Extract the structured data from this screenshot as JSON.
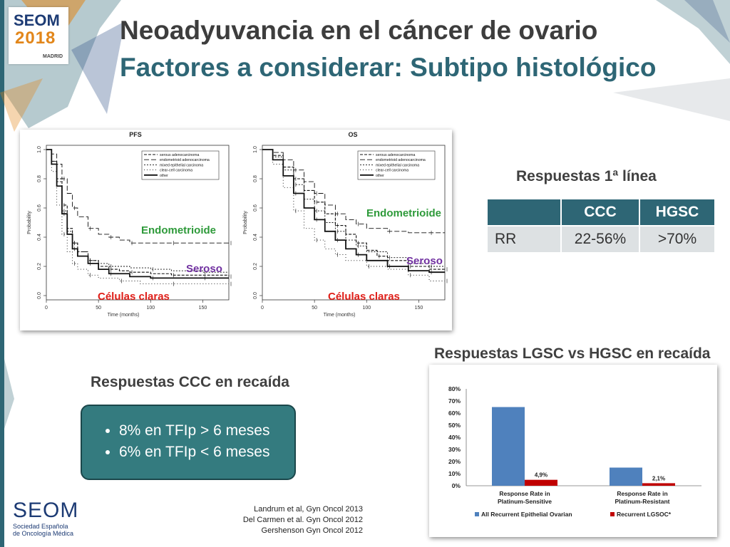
{
  "logo": {
    "line1": "SEOM",
    "line2": "2018",
    "city": "MADRID"
  },
  "title": {
    "line1": "Neoadyuvancia en el cáncer de ovario",
    "line2": "Factores a considerar: Subtipo histológico"
  },
  "km_plots": [
    {
      "panel_title": "PFS",
      "ylabel": "Probability",
      "xlabel": "Time (months)",
      "xticks": [
        "0",
        "50",
        "100",
        "150"
      ],
      "yticks": [
        "0.0",
        "0.2",
        "0.4",
        "0.6",
        "0.8",
        "1.0"
      ],
      "legend": [
        "serous adenocarcinoma",
        "endometrioid adenocarcinoma",
        "mixed epithelial carcinoma",
        "clear-cell carcinoma",
        "other"
      ],
      "annotations": {
        "endometrioid": "Endometrioide",
        "serous": "Seroso",
        "clear_cell": "Células claras"
      }
    },
    {
      "panel_title": "OS",
      "ylabel": "Probability",
      "xlabel": "Time (months)",
      "xticks": [
        "0",
        "50",
        "100",
        "150"
      ],
      "yticks": [
        "0.0",
        "0.2",
        "0.4",
        "0.6",
        "0.8",
        "1.0"
      ],
      "legend": [
        "serous adenocarcinoma",
        "endometrioid adenocarcinoma",
        "mixed epithelial carcinoma",
        "clear-cell carcinoma",
        "other"
      ],
      "annotations": {
        "endometrioid": "Endometrioide",
        "serous": "Seroso",
        "clear_cell": "Células claras"
      }
    }
  ],
  "first_line": {
    "heading": "Respuestas 1ª línea",
    "headers": [
      "",
      "CCC",
      "HGSC"
    ],
    "row": [
      "RR",
      "22-56%",
      ">70%"
    ]
  },
  "ccc_relapse": {
    "heading": "Respuestas CCC en recaída",
    "bullets": [
      "8% en TFIp > 6 meses",
      "6% en TFIp < 6 meses"
    ]
  },
  "lgsc": {
    "heading": "Respuestas LGSC vs HGSC en recaída"
  },
  "references": [
    "Landrum et al, Gyn Oncol 2013",
    "Del Carmen et al. Gyn Oncol 2012",
    "Gershenson Gyn Oncol 2012"
  ],
  "seom_footer": {
    "name": "SEOM",
    "line1": "Sociedad Española",
    "line2": "de Oncología Médica"
  },
  "chart_data": [
    {
      "type": "line",
      "title": "PFS",
      "xlabel": "Time (months)",
      "ylabel": "Probability",
      "xlim": [
        0,
        175
      ],
      "ylim": [
        0,
        1
      ],
      "series": [
        {
          "name": "serous adenocarcinoma",
          "x": [
            0,
            5,
            10,
            15,
            20,
            25,
            30,
            40,
            50,
            60,
            70,
            80,
            100,
            120,
            150,
            175
          ],
          "y": [
            1.0,
            0.92,
            0.8,
            0.62,
            0.46,
            0.36,
            0.3,
            0.24,
            0.2,
            0.18,
            0.17,
            0.16,
            0.15,
            0.14,
            0.14,
            0.13
          ]
        },
        {
          "name": "endometrioid adenocarcinoma",
          "x": [
            0,
            5,
            10,
            15,
            20,
            25,
            30,
            40,
            50,
            60,
            70,
            80,
            100,
            120,
            150,
            175
          ],
          "y": [
            1.0,
            0.97,
            0.9,
            0.8,
            0.7,
            0.6,
            0.54,
            0.46,
            0.42,
            0.4,
            0.38,
            0.36,
            0.36,
            0.36,
            0.36,
            0.36
          ]
        },
        {
          "name": "mixed epithelial carcinoma",
          "x": [
            0,
            5,
            10,
            15,
            20,
            25,
            30,
            40,
            50,
            60,
            80,
            100,
            120,
            150,
            175
          ],
          "y": [
            1.0,
            0.92,
            0.78,
            0.58,
            0.44,
            0.36,
            0.3,
            0.24,
            0.22,
            0.2,
            0.19,
            0.18,
            0.17,
            0.16,
            0.16
          ]
        },
        {
          "name": "clear-cell carcinoma",
          "x": [
            0,
            5,
            10,
            15,
            20,
            25,
            30,
            40,
            50,
            70,
            90,
            120,
            150,
            175
          ],
          "y": [
            1.0,
            0.85,
            0.62,
            0.42,
            0.3,
            0.22,
            0.18,
            0.14,
            0.12,
            0.1,
            0.08,
            0.08,
            0.08,
            0.08
          ]
        },
        {
          "name": "other",
          "x": [
            0,
            5,
            10,
            15,
            20,
            25,
            30,
            40,
            50,
            60,
            80,
            100,
            120,
            150,
            175
          ],
          "y": [
            1.0,
            0.9,
            0.75,
            0.56,
            0.42,
            0.32,
            0.27,
            0.22,
            0.18,
            0.15,
            0.13,
            0.12,
            0.12,
            0.12,
            0.12
          ]
        }
      ]
    },
    {
      "type": "line",
      "title": "OS",
      "xlabel": "Time (months)",
      "ylabel": "Probability",
      "xlim": [
        0,
        175
      ],
      "ylim": [
        0,
        1
      ],
      "series": [
        {
          "name": "serous adenocarcinoma",
          "x": [
            0,
            10,
            20,
            30,
            40,
            50,
            60,
            70,
            80,
            90,
            100,
            110,
            120,
            140,
            160,
            175
          ],
          "y": [
            1.0,
            0.96,
            0.88,
            0.8,
            0.72,
            0.64,
            0.56,
            0.48,
            0.42,
            0.36,
            0.31,
            0.27,
            0.24,
            0.2,
            0.18,
            0.18
          ]
        },
        {
          "name": "endometrioid adenocarcinoma",
          "x": [
            0,
            10,
            20,
            30,
            40,
            50,
            60,
            70,
            80,
            90,
            100,
            120,
            140,
            160,
            175
          ],
          "y": [
            1.0,
            0.98,
            0.93,
            0.86,
            0.78,
            0.7,
            0.62,
            0.56,
            0.52,
            0.49,
            0.46,
            0.44,
            0.43,
            0.43,
            0.43
          ]
        },
        {
          "name": "mixed epithelial carcinoma",
          "x": [
            0,
            10,
            20,
            30,
            40,
            50,
            60,
            70,
            80,
            90,
            100,
            120,
            140,
            160,
            175
          ],
          "y": [
            1.0,
            0.95,
            0.86,
            0.76,
            0.66,
            0.58,
            0.5,
            0.44,
            0.38,
            0.34,
            0.3,
            0.26,
            0.22,
            0.2,
            0.2
          ]
        },
        {
          "name": "clear-cell carcinoma",
          "x": [
            0,
            10,
            20,
            30,
            40,
            50,
            60,
            70,
            80,
            100,
            120,
            140,
            160,
            175
          ],
          "y": [
            1.0,
            0.9,
            0.74,
            0.58,
            0.46,
            0.38,
            0.32,
            0.28,
            0.24,
            0.2,
            0.18,
            0.14,
            0.1,
            0.1
          ]
        },
        {
          "name": "other",
          "x": [
            0,
            10,
            20,
            30,
            40,
            50,
            60,
            70,
            80,
            90,
            100,
            120,
            140,
            160,
            175
          ],
          "y": [
            1.0,
            0.93,
            0.82,
            0.7,
            0.6,
            0.52,
            0.44,
            0.38,
            0.32,
            0.28,
            0.24,
            0.2,
            0.17,
            0.16,
            0.16
          ]
        }
      ]
    },
    {
      "type": "bar",
      "categories": [
        "Response Rate in Platinum-Sensitive",
        "Response Rate in Platinum-Resistant"
      ],
      "series": [
        {
          "name": "All Recurrent Epithelial Ovarian",
          "values": [
            65,
            15
          ],
          "color": "#4f81bd",
          "labels": [
            "",
            ""
          ]
        },
        {
          "name": "Recurrent LGSOC*",
          "values": [
            4.9,
            2.1
          ],
          "color": "#c00000",
          "labels": [
            "4,9%",
            "2,1%"
          ]
        }
      ],
      "yticks": [
        "80%",
        "70%",
        "60%",
        "50%",
        "40%",
        "30%",
        "20%",
        "10%",
        "0%"
      ],
      "ylim": [
        0,
        80
      ]
    }
  ]
}
